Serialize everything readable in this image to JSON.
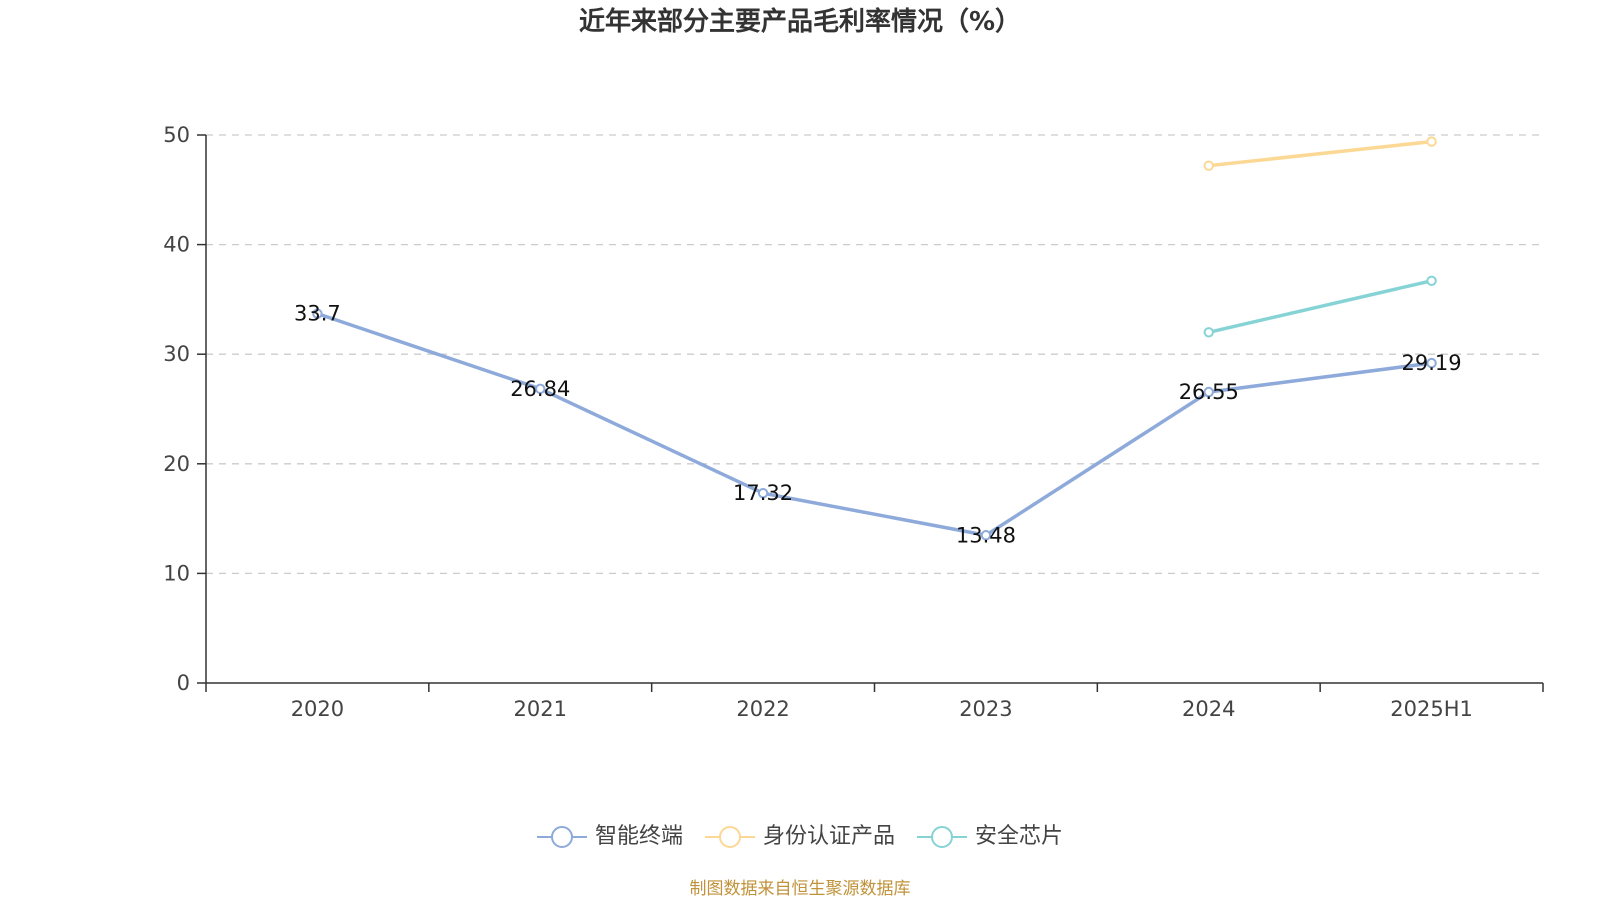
{
  "title": "近年来部分主要产品毛利率情况（%）",
  "source": "制图数据来自恒生聚源数据库",
  "chart_data": {
    "type": "line",
    "title": "近年来部分主要产品毛利率情况（%）",
    "categories": [
      "2020",
      "2021",
      "2022",
      "2023",
      "2024",
      "2025H1"
    ],
    "ylim": [
      0,
      50
    ],
    "yticks": [
      0,
      10,
      20,
      30,
      40,
      50
    ],
    "grid": true,
    "legend_position": "bottom",
    "series": [
      {
        "name": "智能终端",
        "color": "#8eaadb",
        "values": [
          33.7,
          26.84,
          17.32,
          13.48,
          26.55,
          29.19
        ],
        "labels": [
          "33.7",
          "26.84",
          "17.32",
          "13.48",
          "26.55",
          "29.19"
        ],
        "show_labels": true
      },
      {
        "name": "身份认证产品",
        "color": "#fcd895",
        "values": [
          null,
          null,
          null,
          null,
          47.2,
          49.4
        ],
        "labels": [],
        "show_labels": false
      },
      {
        "name": "安全芯片",
        "color": "#86d3d6",
        "values": [
          null,
          null,
          null,
          null,
          32.0,
          36.7
        ],
        "labels": [],
        "show_labels": false
      }
    ]
  }
}
